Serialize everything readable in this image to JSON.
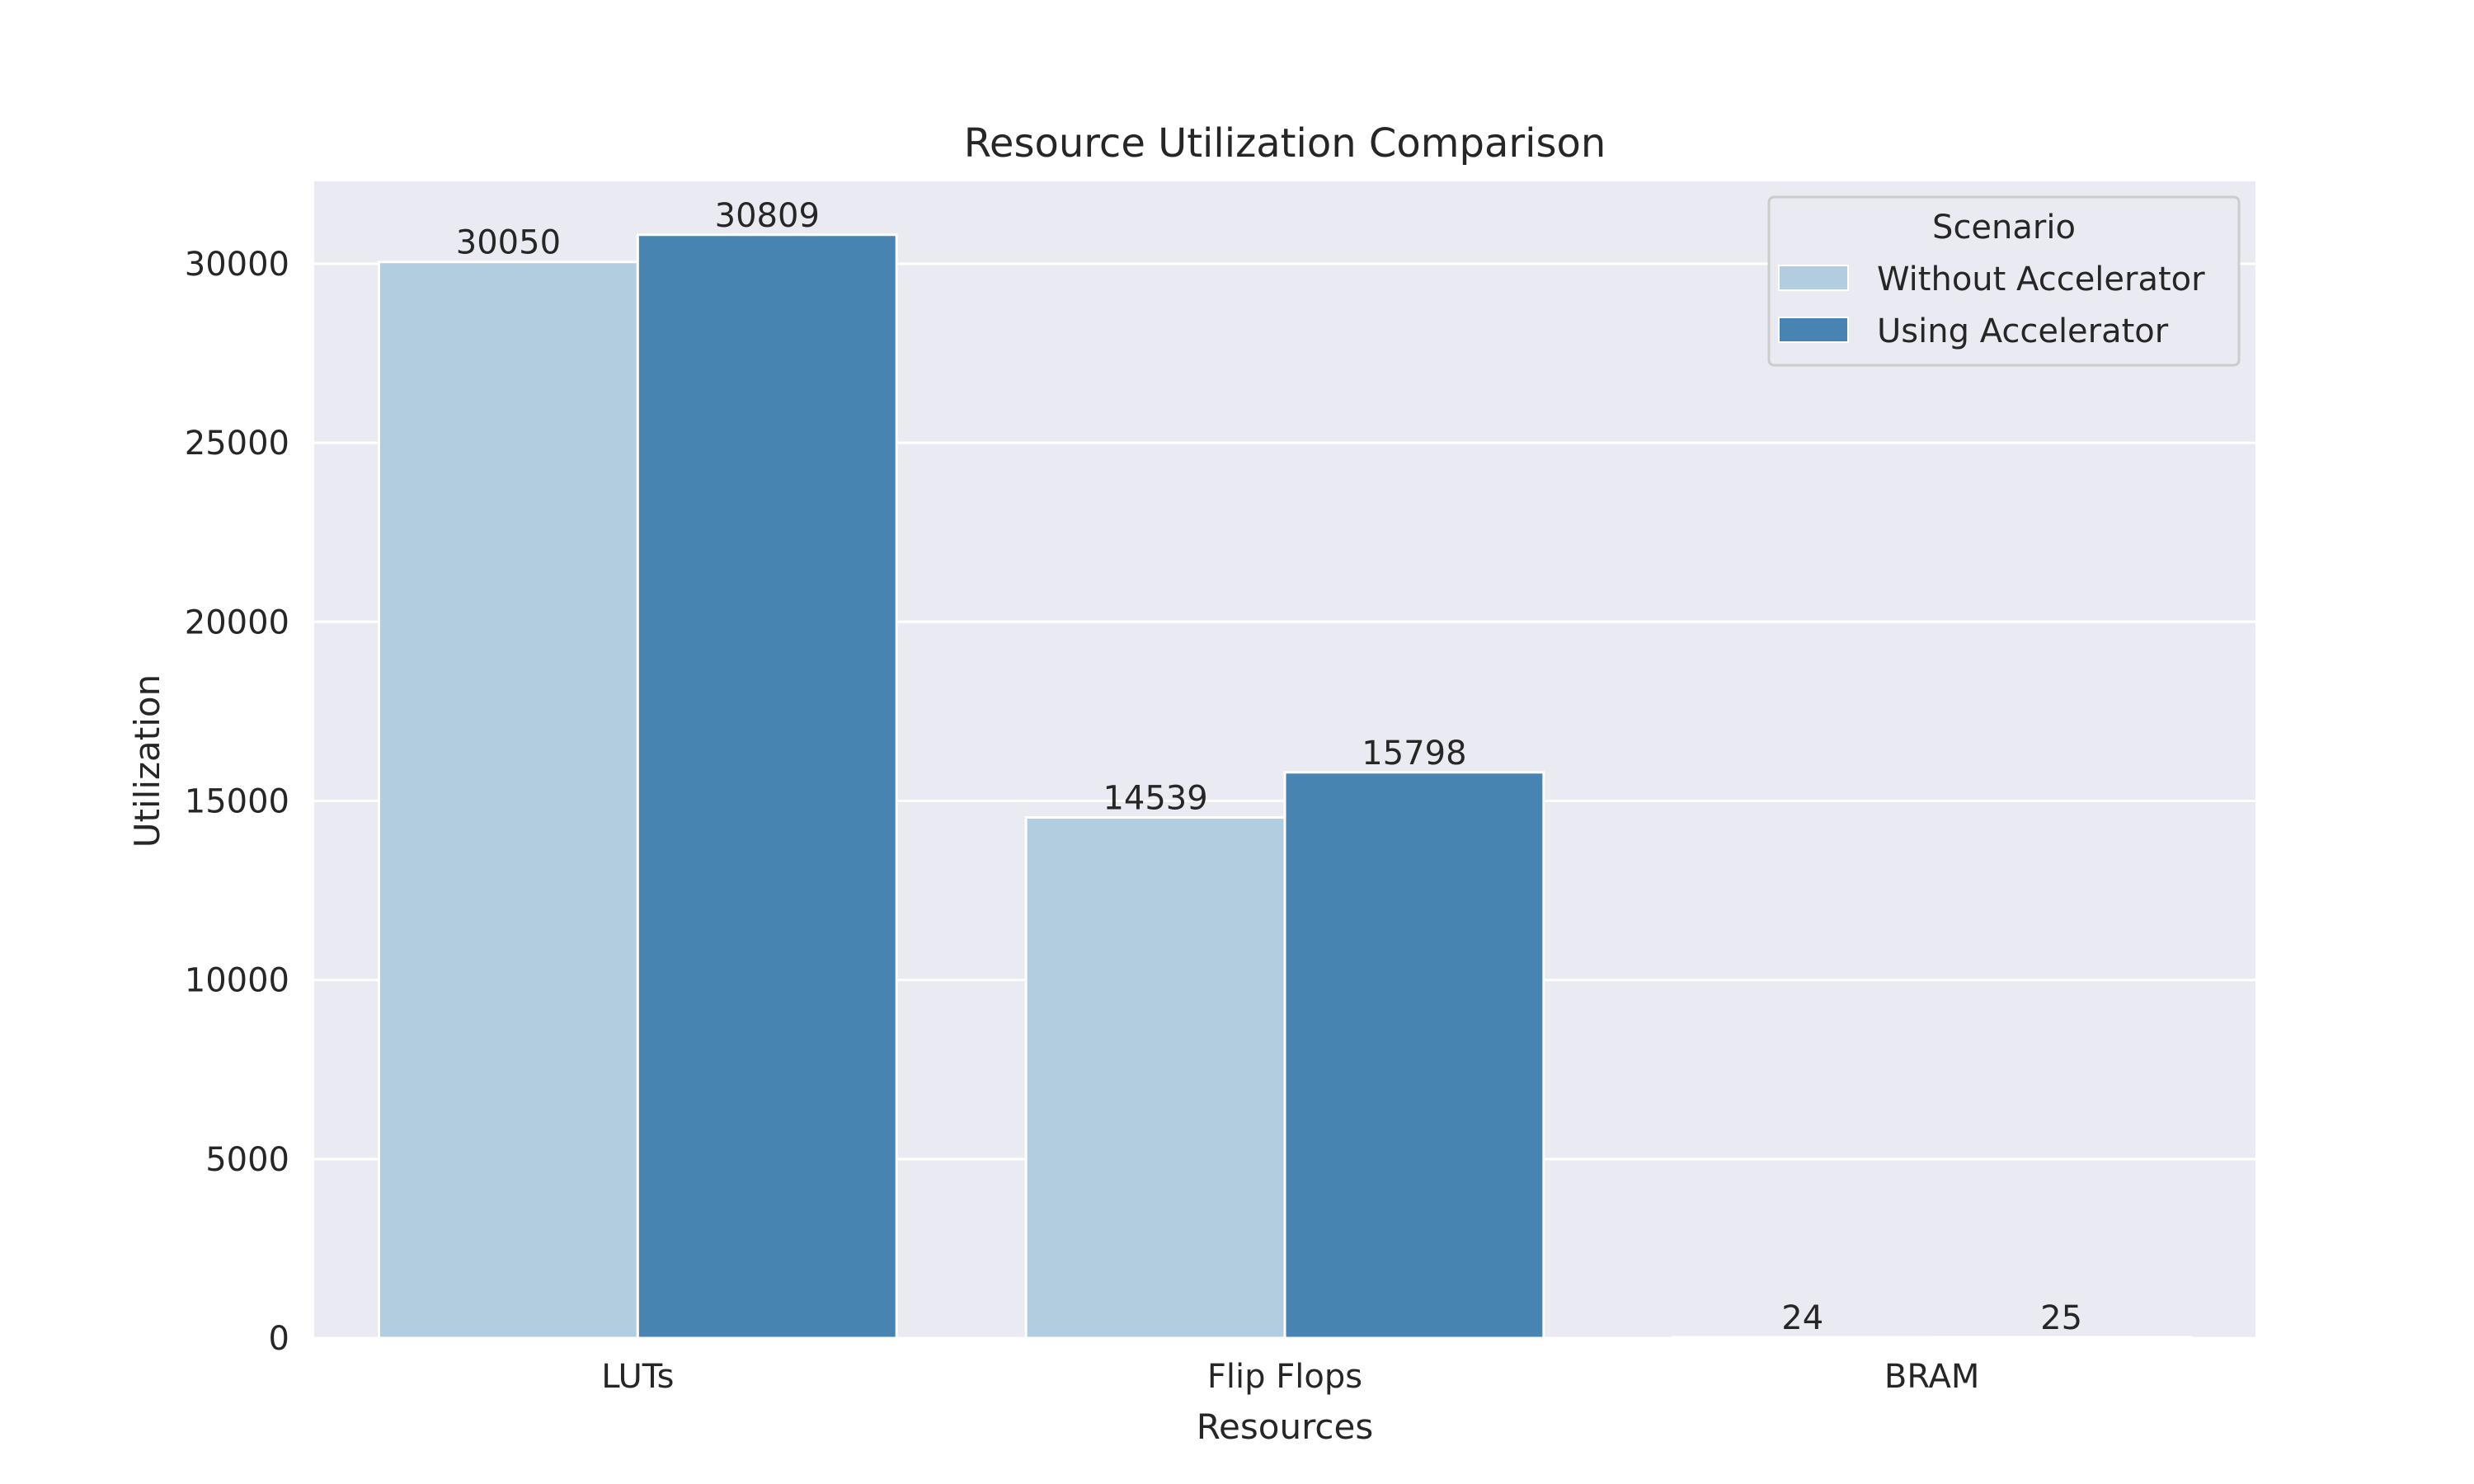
{
  "chart_data": {
    "type": "bar",
    "title": "Resource Utilization Comparison",
    "xlabel": "Resources",
    "ylabel": "Utilization",
    "categories": [
      "LUTs",
      "Flip Flops",
      "BRAM"
    ],
    "series": [
      {
        "name": "Without Accelerator",
        "values": [
          30050,
          14539,
          24
        ],
        "color": "#b3cde0"
      },
      {
        "name": "Using Accelerator",
        "values": [
          30809,
          15798,
          25
        ],
        "color": "#4884b1"
      }
    ],
    "ylim": [
      0,
      32300
    ],
    "yticks": [
      0,
      5000,
      10000,
      15000,
      20000,
      25000,
      30000
    ],
    "legend_title": "Scenario",
    "legend_position": "top-right",
    "grid": true,
    "background": "#eaeaf2",
    "grid_color": "#ffffff"
  }
}
